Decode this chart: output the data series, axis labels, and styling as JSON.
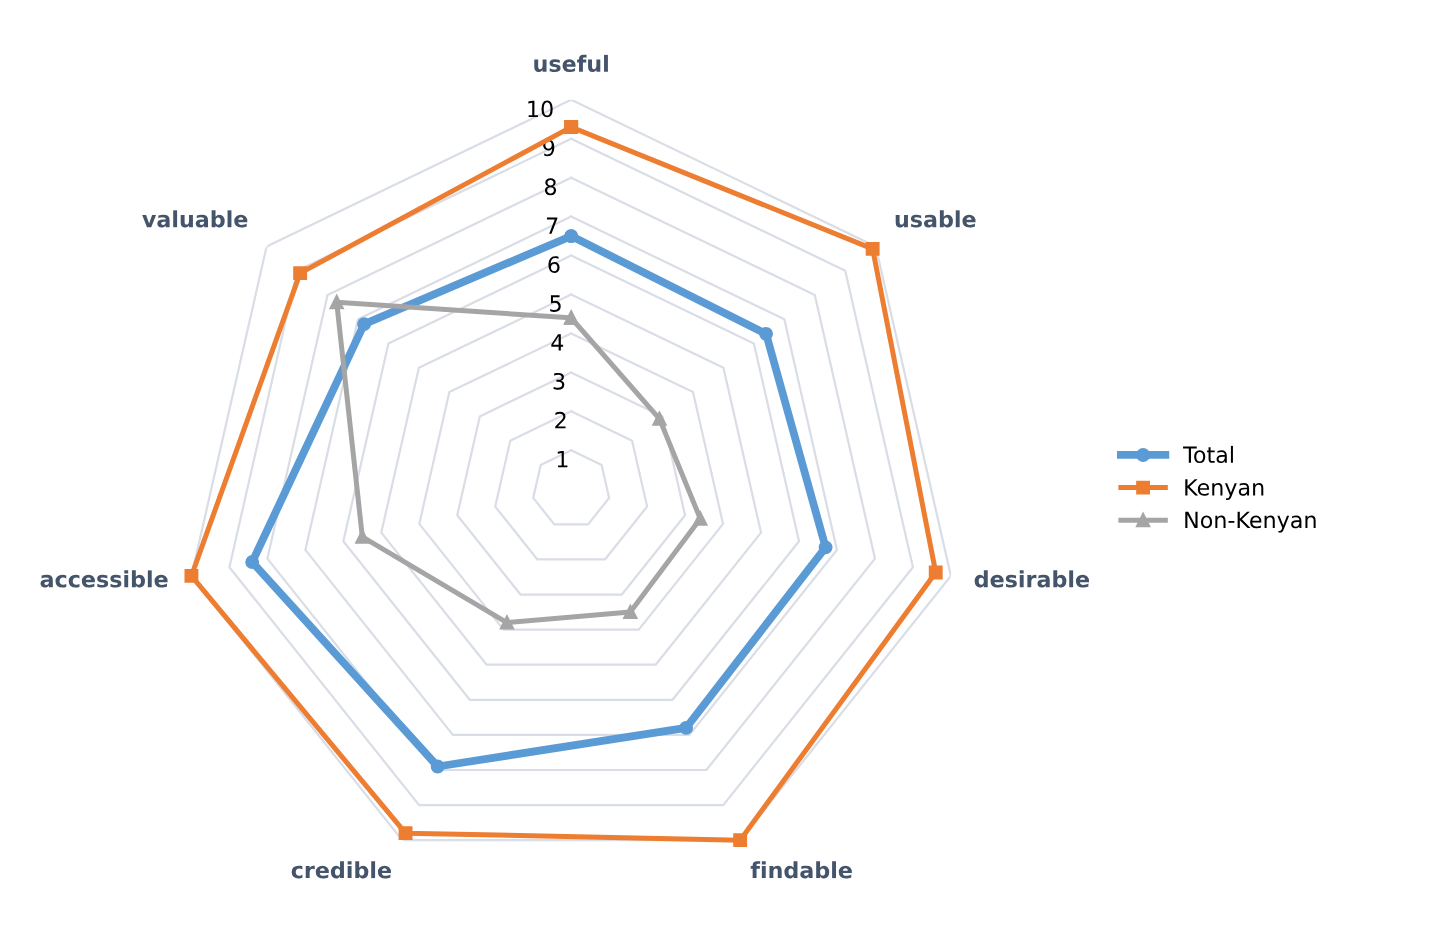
{
  "chart_data": {
    "type": "radar",
    "categories": [
      "useful",
      "usable",
      "desirable",
      "findable",
      "credible",
      "accessible",
      "valuable"
    ],
    "series": [
      {
        "name": "Total",
        "color": "#5b9bd5",
        "marker": "circle",
        "values": [
          6.5,
          6.4,
          6.7,
          6.8,
          7.9,
          8.4,
          6.8
        ]
      },
      {
        "name": "Kenyan",
        "color": "#ed7d31",
        "marker": "square",
        "values": [
          9.3,
          9.9,
          9.6,
          10,
          9.8,
          10,
          8.9
        ]
      },
      {
        "name": "Non-Kenyan",
        "color": "#a5a5a5",
        "marker": "triangle",
        "values": [
          4.4,
          2.9,
          3.4,
          3.5,
          3.8,
          5.5,
          7.7
        ]
      }
    ],
    "ylim": [
      0,
      10
    ],
    "yticks": [
      1,
      2,
      3,
      4,
      5,
      6,
      7,
      8,
      9,
      10
    ],
    "grid": true,
    "legend": "right"
  }
}
